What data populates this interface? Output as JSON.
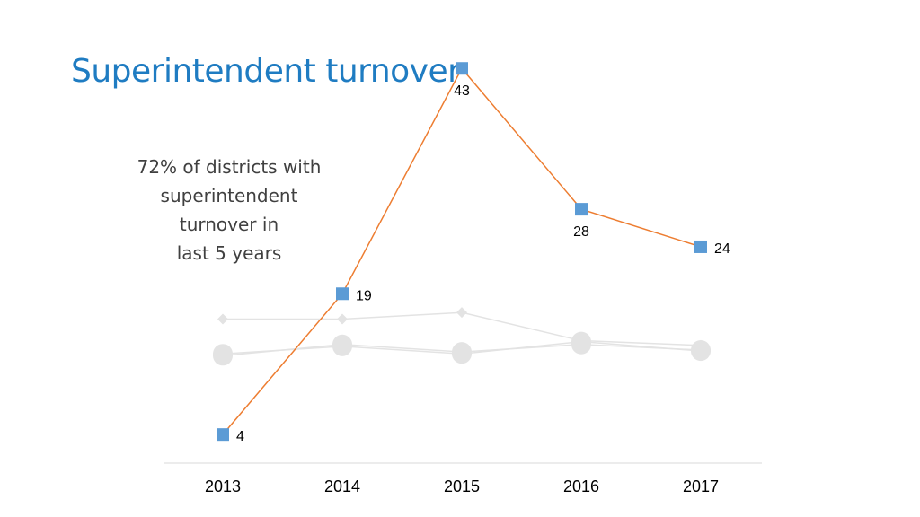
{
  "slide": {
    "title": "Superintendent turnover",
    "callout_lines": [
      "72% of districts with",
      "superintendent",
      "turnover in",
      "last 5 years"
    ]
  },
  "colors": {
    "title": "#1f7cc2",
    "line": "#ed7d31",
    "marker": "#5b9bd5",
    "faded": "#e3e3e3",
    "axis": "#d9d9d9"
  },
  "chart_data": {
    "type": "line",
    "categories": [
      "2013",
      "2014",
      "2015",
      "2016",
      "2017"
    ],
    "ylim": [
      0,
      50
    ],
    "grid": false,
    "legend": "none",
    "series": [
      {
        "values": [
          4,
          19,
          43,
          28,
          24
        ],
        "labels": [
          "4",
          "19",
          "43",
          "28",
          "24"
        ],
        "marker": "square",
        "emphasis": true
      },
      {
        "values": [
          16.3,
          16.3,
          17,
          14,
          13.5
        ],
        "marker": "diamond",
        "emphasis": false
      },
      {
        "values": [
          12.4,
          13.6,
          12.8,
          13.6,
          13
        ],
        "marker": "circle",
        "emphasis": false
      },
      {
        "values": [
          12.6,
          13.4,
          12.6,
          13.9,
          12.9
        ],
        "marker": "circle",
        "emphasis": false
      }
    ]
  }
}
